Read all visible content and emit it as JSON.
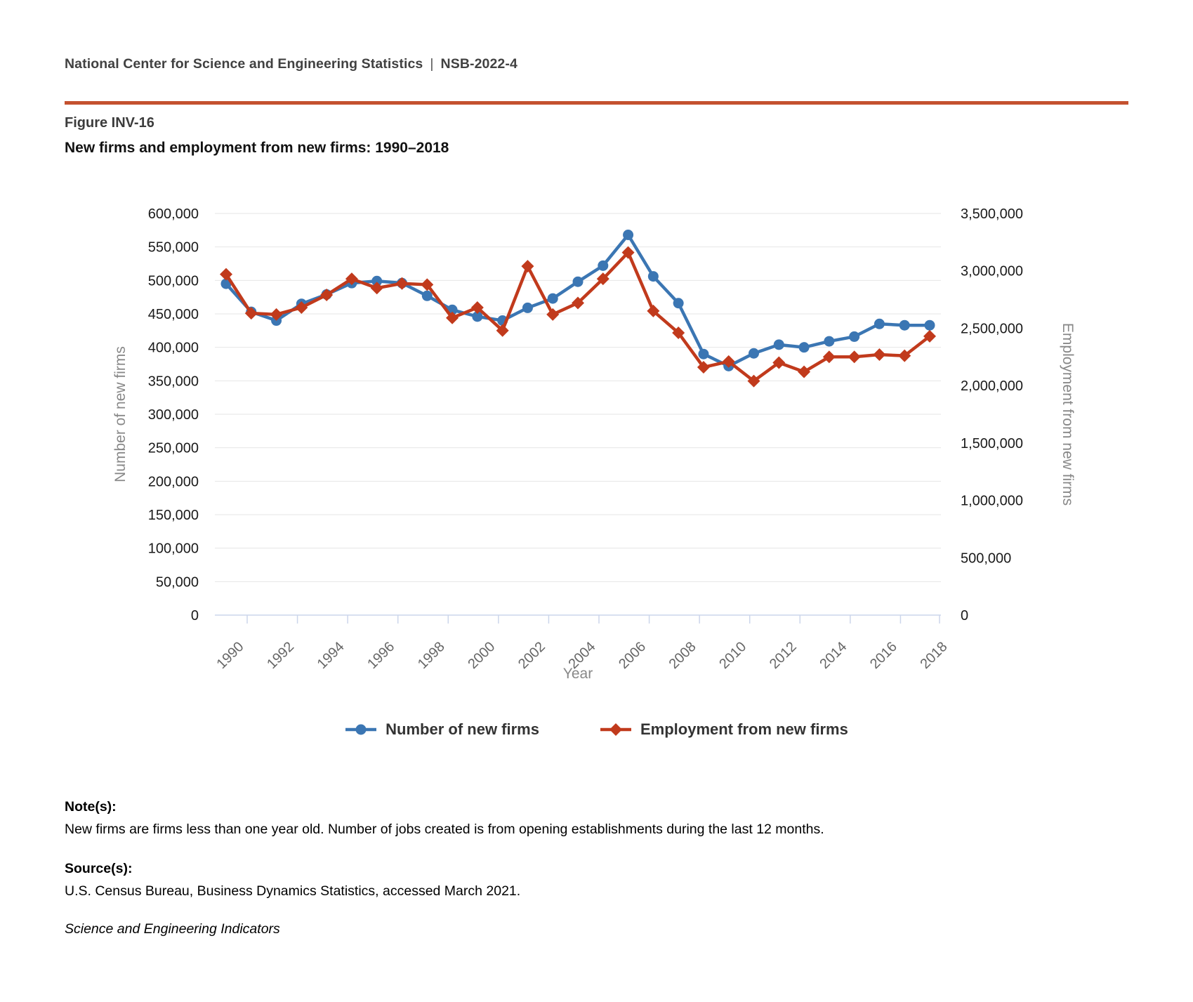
{
  "header": {
    "org": "National Center for Science and Engineering Statistics",
    "separator": "|",
    "code": "NSB-2022-4"
  },
  "figure": {
    "label": "Figure INV-16",
    "title": "New firms and employment from new firms: 1990–2018"
  },
  "chart_data": {
    "type": "line",
    "title": "New firms and employment from new firms: 1990–2018",
    "xlabel": "Year",
    "x": [
      1990,
      1991,
      1992,
      1993,
      1994,
      1995,
      1996,
      1997,
      1998,
      1999,
      2000,
      2001,
      2002,
      2003,
      2004,
      2005,
      2006,
      2007,
      2008,
      2009,
      2010,
      2011,
      2012,
      2013,
      2014,
      2015,
      2016,
      2017,
      2018
    ],
    "x_ticks": [
      1990,
      1992,
      1994,
      1996,
      1998,
      2000,
      2002,
      2004,
      2006,
      2008,
      2010,
      2012,
      2014,
      2016,
      2018
    ],
    "y_left": {
      "label": "Number of new firms",
      "min": 0,
      "max": 600000,
      "ticks": [
        0,
        50000,
        100000,
        150000,
        200000,
        250000,
        300000,
        350000,
        400000,
        450000,
        500000,
        550000,
        600000
      ]
    },
    "y_right": {
      "label": "Employment from new firms",
      "min": 0,
      "max": 3500000,
      "ticks": [
        0,
        500000,
        1000000,
        1500000,
        2000000,
        2500000,
        3000000,
        3500000
      ]
    },
    "grid": true,
    "legend_position": "bottom",
    "series": [
      {
        "name": "Number of new firms",
        "axis": "left",
        "color": "#3b76b3",
        "marker": "circle",
        "values": [
          495000,
          453000,
          440000,
          465000,
          479000,
          496000,
          499000,
          496000,
          477000,
          456000,
          446000,
          440000,
          459000,
          473000,
          498000,
          522000,
          568000,
          506000,
          466000,
          390000,
          372000,
          391000,
          404000,
          400000,
          409000,
          416000,
          435000,
          433000,
          433000
        ]
      },
      {
        "name": "Employment from new firms",
        "axis": "right",
        "color": "#c13a1c",
        "marker": "diamond",
        "values": [
          2970000,
          2630000,
          2620000,
          2680000,
          2790000,
          2930000,
          2850000,
          2890000,
          2880000,
          2590000,
          2680000,
          2480000,
          3040000,
          2620000,
          2720000,
          2930000,
          3160000,
          2650000,
          2460000,
          2160000,
          2210000,
          2040000,
          2200000,
          2120000,
          2250000,
          2250000,
          2270000,
          2260000,
          2430000
        ]
      }
    ]
  },
  "notes": {
    "notes_heading": "Note(s):",
    "notes_text": "New firms are firms less than one year old. Number of jobs created is from opening establishments during the last 12 months.",
    "sources_heading": "Source(s):",
    "sources_text": "U.S. Census Bureau, Business Dynamics Statistics, accessed March 2021.",
    "attribution": "Science and Engineering Indicators"
  },
  "colors": {
    "accent_rule": "#c4512f",
    "grid_line": "#e6e6e6",
    "axis_line": "#ccd6eb",
    "tick_label": "#1a1a1a",
    "x_tick_label": "#666666",
    "axis_title": "#888888",
    "firms_series": "#3b76b3",
    "employment_series": "#c13a1c"
  }
}
